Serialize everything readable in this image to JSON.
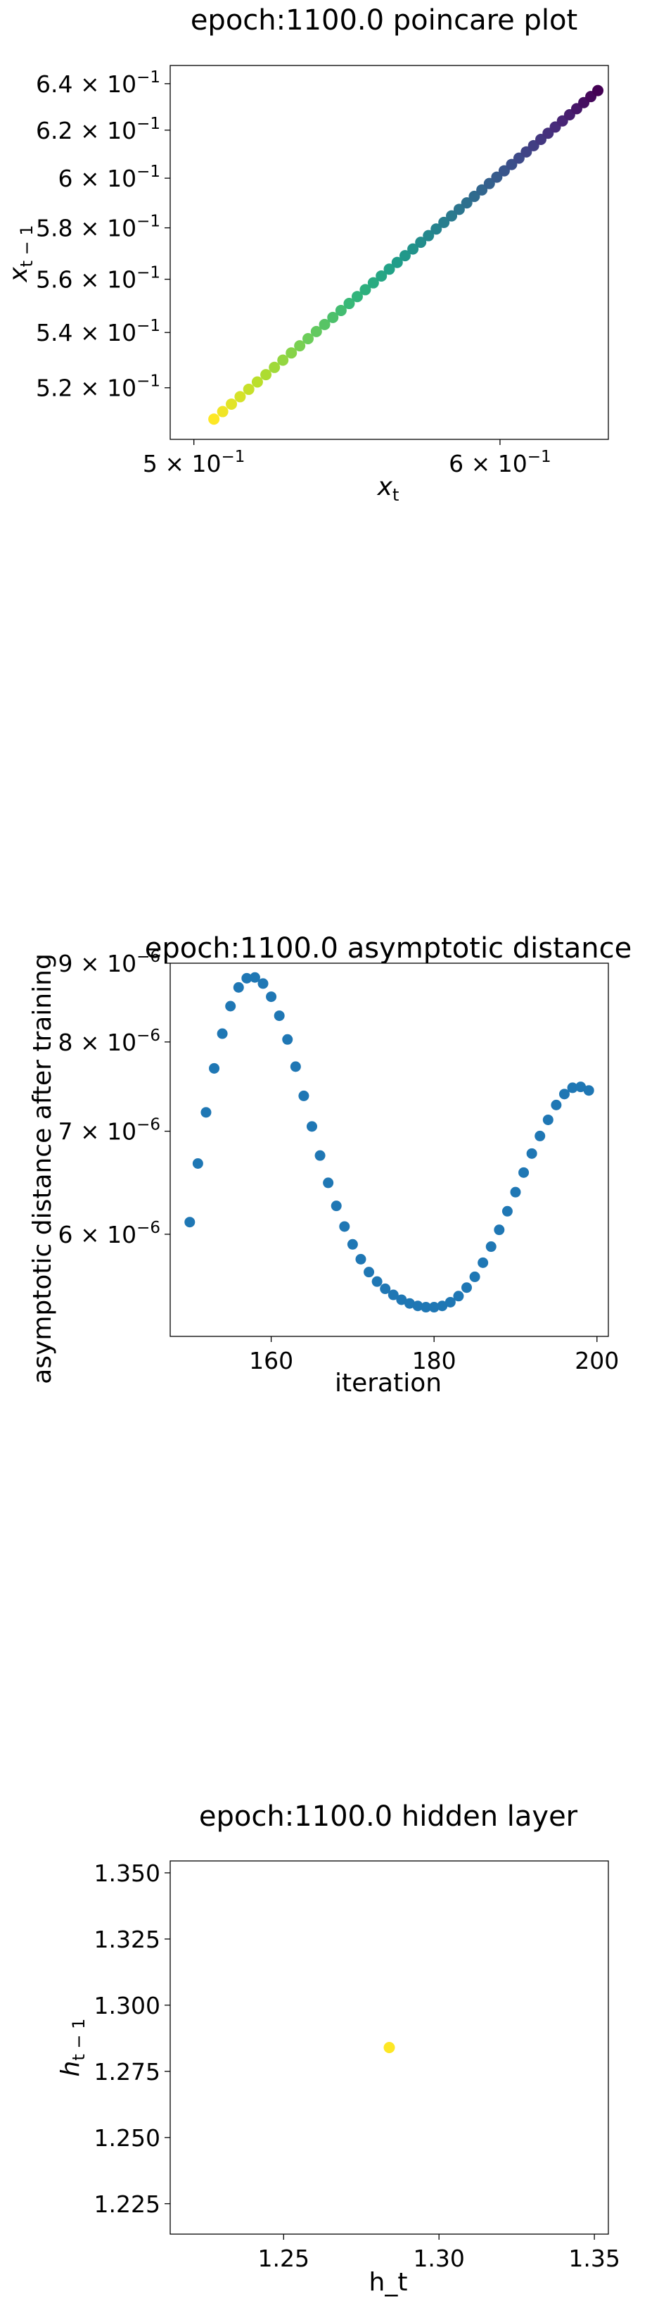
{
  "chart_data": [
    {
      "type": "scatter",
      "title": "epoch:1100.0 poincare plot",
      "xlabel": "x_t",
      "ylabel": "x_{t-1}",
      "xscale": "log",
      "yscale": "log",
      "xlim": [
        0.493,
        0.64
      ],
      "ylim": [
        0.502,
        0.648
      ],
      "x_ticks": [
        {
          "value": 0.5,
          "mant": "5",
          "exp": "−1"
        },
        {
          "value": 0.6,
          "mant": "6",
          "exp": "−1"
        }
      ],
      "y_ticks": [
        {
          "value": 0.52,
          "mant": "5.2",
          "exp": "−1"
        },
        {
          "value": 0.54,
          "mant": "5.4",
          "exp": "−1"
        },
        {
          "value": 0.56,
          "mant": "5.6",
          "exp": "−1"
        },
        {
          "value": 0.58,
          "mant": "5.8",
          "exp": "−1"
        },
        {
          "value": 0.6,
          "mant": "6",
          "exp": "−1"
        },
        {
          "value": 0.62,
          "mant": "6.2",
          "exp": "−1"
        },
        {
          "value": 0.64,
          "mant": "6.4",
          "exp": "−1"
        }
      ],
      "colormap": "viridis",
      "colormap_direction": "first point yellow, last point dark purple",
      "point_count": 50,
      "x_range_of_points": [
        0.506,
        0.636
      ],
      "y_range_of_points": [
        0.509,
        0.637
      ],
      "grid": false
    },
    {
      "type": "scatter",
      "title": "epoch:1100.0 asymptotic distance",
      "xlabel": "iteration",
      "ylabel": "asymptotic distance after training",
      "yscale": "log",
      "xlim": [
        147.6,
        201.4
      ],
      "ylim": [
        5.15e-06,
        9e-06
      ],
      "x_ticks": [
        {
          "value": 160,
          "label": "160"
        },
        {
          "value": 180,
          "label": "180"
        },
        {
          "value": 200,
          "label": "200"
        }
      ],
      "y_ticks": [
        {
          "value": 6e-06,
          "mant": "6",
          "exp": "−6"
        },
        {
          "value": 7e-06,
          "mant": "7",
          "exp": "−6"
        },
        {
          "value": 8e-06,
          "mant": "8",
          "exp": "−6"
        },
        {
          "value": 9e-06,
          "mant": "9",
          "exp": "−6"
        }
      ],
      "color": "#1f77b4",
      "x": [
        150,
        151,
        152,
        153,
        154,
        155,
        156,
        157,
        158,
        159,
        160,
        161,
        162,
        163,
        164,
        165,
        166,
        167,
        168,
        169,
        170,
        171,
        172,
        173,
        174,
        175,
        176,
        177,
        178,
        179,
        180,
        181,
        182,
        183,
        184,
        185,
        186,
        187,
        188,
        189,
        190,
        191,
        192,
        193,
        194,
        195,
        196,
        197,
        198,
        199
      ],
      "y": [
        6.11e-06,
        6.67e-06,
        7.2e-06,
        7.69e-06,
        8.1e-06,
        8.44e-06,
        8.68e-06,
        8.8e-06,
        8.81e-06,
        8.73e-06,
        8.56e-06,
        8.32e-06,
        8.03e-06,
        7.71e-06,
        7.38e-06,
        7.05e-06,
        6.75e-06,
        6.48e-06,
        6.26e-06,
        6.07e-06,
        5.91e-06,
        5.78e-06,
        5.67e-06,
        5.59e-06,
        5.53e-06,
        5.48e-06,
        5.44e-06,
        5.41e-06,
        5.39e-06,
        5.38e-06,
        5.38e-06,
        5.39e-06,
        5.42e-06,
        5.47e-06,
        5.54e-06,
        5.63e-06,
        5.75e-06,
        5.89e-06,
        6.04e-06,
        6.21e-06,
        6.39e-06,
        6.58e-06,
        6.77e-06,
        6.95e-06,
        7.12e-06,
        7.28e-06,
        7.4e-06,
        7.47e-06,
        7.48e-06,
        7.44e-06
      ],
      "grid": false
    },
    {
      "type": "scatter",
      "title": "epoch:1100.0 hidden layer",
      "xlabel": "h_t",
      "ylabel": "h_{t-1}",
      "xlim": [
        1.2135,
        1.3545
      ],
      "ylim": [
        1.2135,
        1.3545
      ],
      "x_ticks": [
        {
          "value": 1.25,
          "label": "1.25"
        },
        {
          "value": 1.3,
          "label": "1.30"
        },
        {
          "value": 1.35,
          "label": "1.35"
        }
      ],
      "y_ticks": [
        {
          "value": 1.225,
          "label": "1.225"
        },
        {
          "value": 1.25,
          "label": "1.250"
        },
        {
          "value": 1.275,
          "label": "1.275"
        },
        {
          "value": 1.3,
          "label": "1.300"
        },
        {
          "value": 1.325,
          "label": "1.325"
        },
        {
          "value": 1.35,
          "label": "1.350"
        }
      ],
      "points": [
        {
          "x": 1.284,
          "y": 1.284
        }
      ],
      "color": "#fde725",
      "grid": false
    }
  ]
}
